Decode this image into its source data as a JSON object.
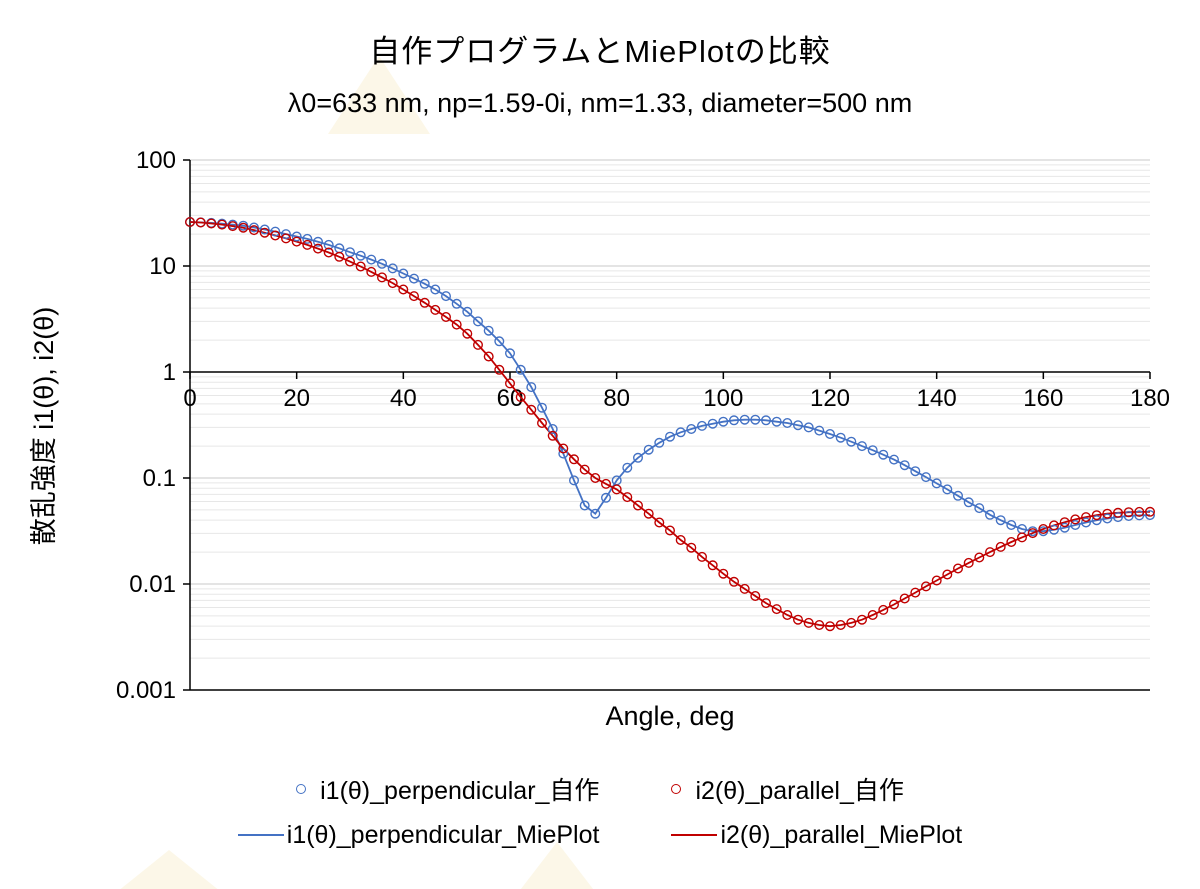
{
  "chart_data": {
    "type": "scatter",
    "title": "自作プログラムとMiePlotの比較",
    "subtitle": "λ0=633 nm, np=1.59-0i, nm=1.33, diameter=500 nm",
    "xlabel": "Angle, deg",
    "ylabel": "散乱強度 i1(θ), i2(θ)",
    "x_range": [
      0,
      180
    ],
    "y_range": [
      0.001,
      100
    ],
    "y_scale": "log",
    "x_ticks": [
      0,
      20,
      40,
      60,
      80,
      100,
      120,
      140,
      160,
      180
    ],
    "y_ticks": [
      "100",
      "10",
      "1",
      "0.1",
      "0.01",
      "0.001"
    ],
    "x_axis_crosses_at": 1,
    "grid": "horizontal only, log major + minor",
    "legend_position": "bottom",
    "colors": {
      "series_blue": "#4472C4",
      "series_red": "#C00000",
      "axis": "#000000",
      "gridline_major": "#c9c9c9",
      "gridline_minor": "#e7e7e7"
    },
    "x": [
      0,
      2,
      4,
      6,
      8,
      10,
      12,
      14,
      16,
      18,
      20,
      22,
      24,
      26,
      28,
      30,
      32,
      34,
      36,
      38,
      40,
      42,
      44,
      46,
      48,
      50,
      52,
      54,
      56,
      58,
      60,
      62,
      64,
      66,
      68,
      70,
      72,
      74,
      76,
      78,
      80,
      82,
      84,
      86,
      88,
      90,
      92,
      94,
      96,
      98,
      100,
      102,
      104,
      106,
      108,
      110,
      112,
      114,
      116,
      118,
      120,
      122,
      124,
      126,
      128,
      130,
      132,
      134,
      136,
      138,
      140,
      142,
      144,
      146,
      148,
      150,
      152,
      154,
      156,
      158,
      160,
      162,
      164,
      166,
      168,
      170,
      172,
      174,
      176,
      178,
      180
    ],
    "series": [
      {
        "name": "i1(θ)_perpendicular_自作",
        "style": "marker",
        "color": "#4472C4",
        "values": [
          26,
          25.8,
          25.5,
          25.1,
          24.6,
          24,
          23.1,
          22.1,
          21.1,
          20,
          19,
          18,
          16.9,
          15.8,
          14.7,
          13.5,
          12.5,
          11.5,
          10.5,
          9.5,
          8.5,
          7.6,
          6.8,
          6,
          5.2,
          4.4,
          3.7,
          3,
          2.45,
          1.95,
          1.5,
          1.05,
          0.72,
          0.46,
          0.29,
          0.17,
          0.095,
          0.055,
          0.046,
          0.065,
          0.095,
          0.125,
          0.155,
          0.185,
          0.215,
          0.245,
          0.27,
          0.29,
          0.31,
          0.325,
          0.34,
          0.35,
          0.355,
          0.355,
          0.35,
          0.34,
          0.33,
          0.315,
          0.3,
          0.28,
          0.26,
          0.24,
          0.22,
          0.2,
          0.183,
          0.166,
          0.149,
          0.132,
          0.116,
          0.102,
          0.089,
          0.078,
          0.068,
          0.059,
          0.052,
          0.045,
          0.04,
          0.036,
          0.033,
          0.0315,
          0.0315,
          0.0325,
          0.034,
          0.036,
          0.038,
          0.04,
          0.0415,
          0.0428,
          0.0438,
          0.0444,
          0.0447
        ]
      },
      {
        "name": "i2(θ)_parallel_自作",
        "style": "marker",
        "color": "#C00000",
        "values": [
          26,
          25.7,
          25.2,
          24.6,
          23.8,
          23,
          21.8,
          20.6,
          19.4,
          18.2,
          17,
          15.8,
          14.6,
          13.4,
          12.2,
          11,
          9.9,
          8.8,
          7.8,
          6.9,
          6,
          5.2,
          4.5,
          3.85,
          3.3,
          2.8,
          2.3,
          1.8,
          1.4,
          1.05,
          0.78,
          0.58,
          0.44,
          0.33,
          0.25,
          0.19,
          0.15,
          0.12,
          0.1,
          0.088,
          0.078,
          0.066,
          0.055,
          0.046,
          0.038,
          0.032,
          0.026,
          0.022,
          0.018,
          0.015,
          0.0125,
          0.0105,
          0.009,
          0.0077,
          0.0066,
          0.0058,
          0.0051,
          0.0046,
          0.0043,
          0.0041,
          0.004,
          0.0041,
          0.0043,
          0.0046,
          0.0051,
          0.0057,
          0.0064,
          0.0073,
          0.0083,
          0.0095,
          0.0108,
          0.0123,
          0.014,
          0.0158,
          0.0178,
          0.02,
          0.0224,
          0.0249,
          0.0275,
          0.0302,
          0.033,
          0.0357,
          0.0383,
          0.0407,
          0.0428,
          0.0446,
          0.046,
          0.047,
          0.0476,
          0.0479,
          0.048
        ]
      },
      {
        "name": "i1(θ)_perpendicular_MiePlot",
        "style": "line",
        "color": "#4472C4",
        "values": [
          26,
          25.8,
          25.5,
          25.1,
          24.6,
          24,
          23.1,
          22.1,
          21.1,
          20,
          19,
          18,
          16.9,
          15.8,
          14.7,
          13.5,
          12.5,
          11.5,
          10.5,
          9.5,
          8.5,
          7.6,
          6.8,
          6,
          5.2,
          4.4,
          3.7,
          3,
          2.45,
          1.95,
          1.5,
          1.05,
          0.72,
          0.46,
          0.29,
          0.17,
          0.095,
          0.055,
          0.046,
          0.065,
          0.095,
          0.125,
          0.155,
          0.185,
          0.215,
          0.245,
          0.27,
          0.29,
          0.31,
          0.325,
          0.34,
          0.35,
          0.355,
          0.355,
          0.35,
          0.34,
          0.33,
          0.315,
          0.3,
          0.28,
          0.26,
          0.24,
          0.22,
          0.2,
          0.183,
          0.166,
          0.149,
          0.132,
          0.116,
          0.102,
          0.089,
          0.078,
          0.068,
          0.059,
          0.052,
          0.045,
          0.04,
          0.036,
          0.033,
          0.0315,
          0.0315,
          0.0325,
          0.034,
          0.036,
          0.038,
          0.04,
          0.0415,
          0.0428,
          0.0438,
          0.0444,
          0.0447
        ]
      },
      {
        "name": "i2(θ)_parallel_MiePlot",
        "style": "line",
        "color": "#C00000",
        "values": [
          26,
          25.7,
          25.2,
          24.6,
          23.8,
          23,
          21.8,
          20.6,
          19.4,
          18.2,
          17,
          15.8,
          14.6,
          13.4,
          12.2,
          11,
          9.9,
          8.8,
          7.8,
          6.9,
          6,
          5.2,
          4.5,
          3.85,
          3.3,
          2.8,
          2.3,
          1.8,
          1.4,
          1.05,
          0.78,
          0.58,
          0.44,
          0.33,
          0.25,
          0.19,
          0.15,
          0.12,
          0.1,
          0.088,
          0.078,
          0.066,
          0.055,
          0.046,
          0.038,
          0.032,
          0.026,
          0.022,
          0.018,
          0.015,
          0.0125,
          0.0105,
          0.009,
          0.0077,
          0.0066,
          0.0058,
          0.0051,
          0.0046,
          0.0043,
          0.0041,
          0.004,
          0.0041,
          0.0043,
          0.0046,
          0.0051,
          0.0057,
          0.0064,
          0.0073,
          0.0083,
          0.0095,
          0.0108,
          0.0123,
          0.014,
          0.0158,
          0.0178,
          0.02,
          0.0224,
          0.0249,
          0.0275,
          0.0302,
          0.033,
          0.0357,
          0.0383,
          0.0407,
          0.0428,
          0.0446,
          0.046,
          0.047,
          0.0476,
          0.0479,
          0.048
        ]
      }
    ]
  }
}
